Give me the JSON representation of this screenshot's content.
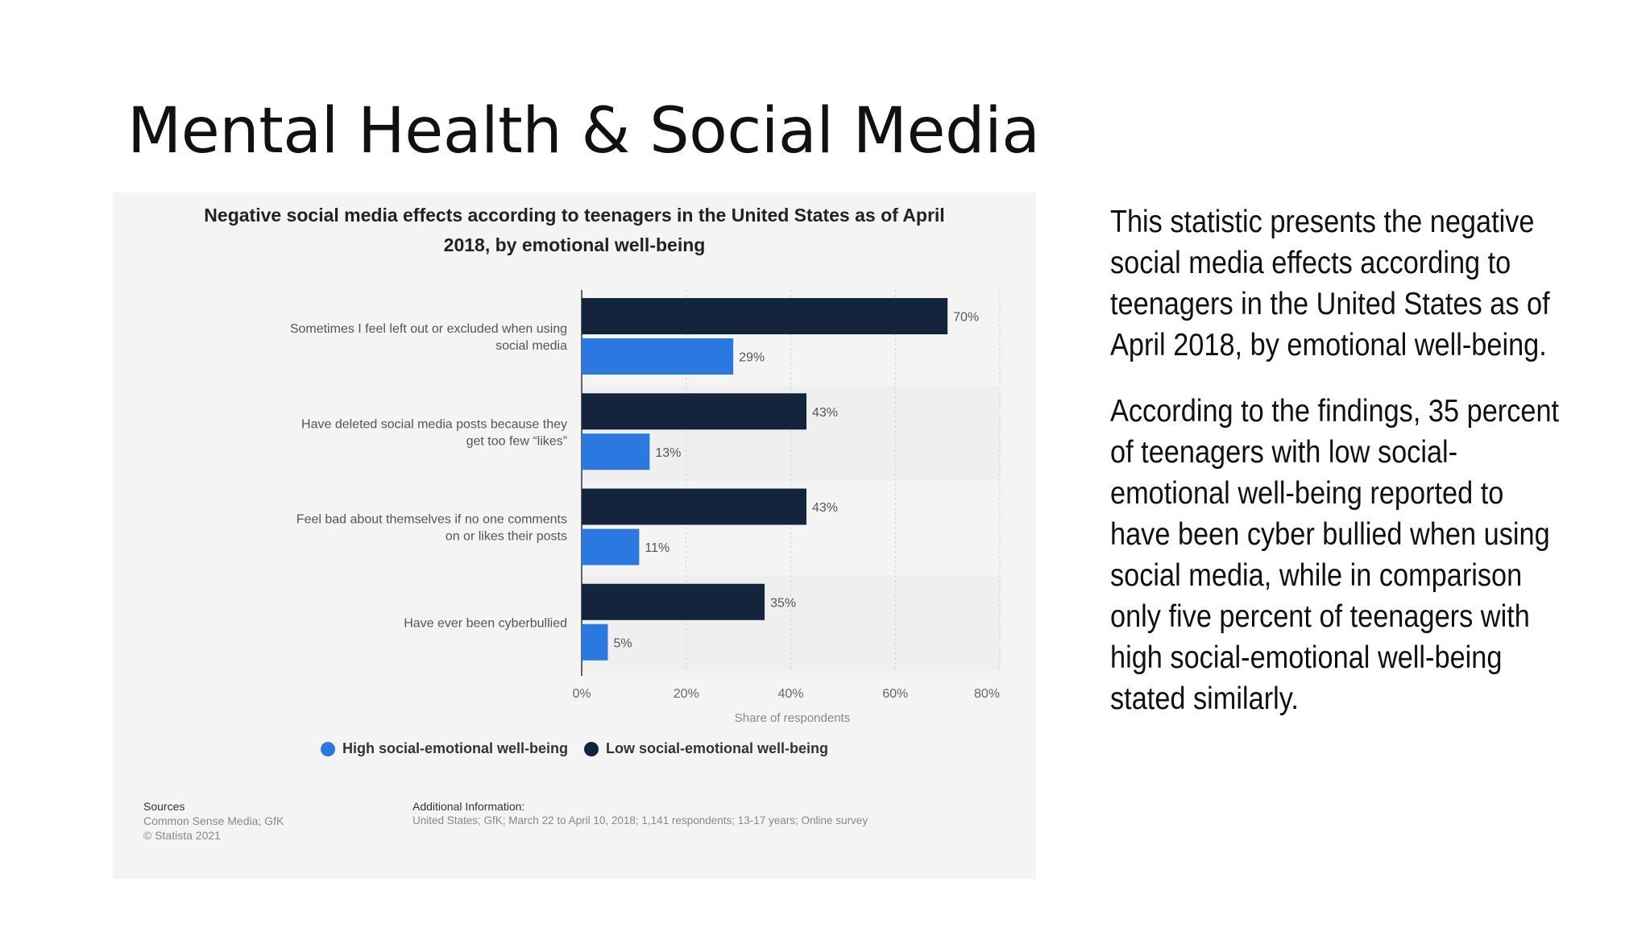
{
  "slide": {
    "title": "Mental Health & Social Media",
    "paragraph1": "This statistic presents the negative social media effects according to teenagers in the United States as of April 2018, by emotional well-being.",
    "paragraph2": "According to the findings, 35 percent of teenagers with low social-emotional well-being reported to have been cyber bullied when using social media, while in comparison only five percent of teenagers with high social-emotional well-being stated similarly."
  },
  "chart_data": {
    "type": "bar",
    "orientation": "horizontal",
    "title_line1": "Negative social media effects according to teenagers in the United States as of April",
    "title_line2": "2018, by emotional well-being",
    "xlabel": "Share of respondents",
    "xlim": [
      0,
      80
    ],
    "xticks": [
      "0%",
      "20%",
      "40%",
      "60%",
      "80%"
    ],
    "grid": true,
    "legend_position": "bottom",
    "categories": [
      [
        "Sometimes I feel left out or excluded when using",
        "social media"
      ],
      [
        "Have deleted social media posts because they",
        "get too few “likes”"
      ],
      [
        "Feel bad about themselves if no one comments",
        "on or likes their posts"
      ],
      [
        "Have ever been cyberbullied"
      ]
    ],
    "series": [
      {
        "name": "Low social-emotional well-being",
        "color": "#15243d",
        "values": [
          70,
          43,
          43,
          35
        ]
      },
      {
        "name": "High social-emotional well-being",
        "color": "#2a78e0",
        "values": [
          29,
          13,
          11,
          5
        ]
      }
    ],
    "legend_order": [
      1,
      0
    ]
  },
  "footer": {
    "sources_heading": "Sources",
    "sources_line1": "Common Sense Media; GfK",
    "sources_line2": "© Statista 2021",
    "additional_heading": "Additional Information:",
    "additional_text": "United States; GfK; March 22 to April 10, 2018; 1,141 respondents; 13-17 years; Online survey"
  }
}
